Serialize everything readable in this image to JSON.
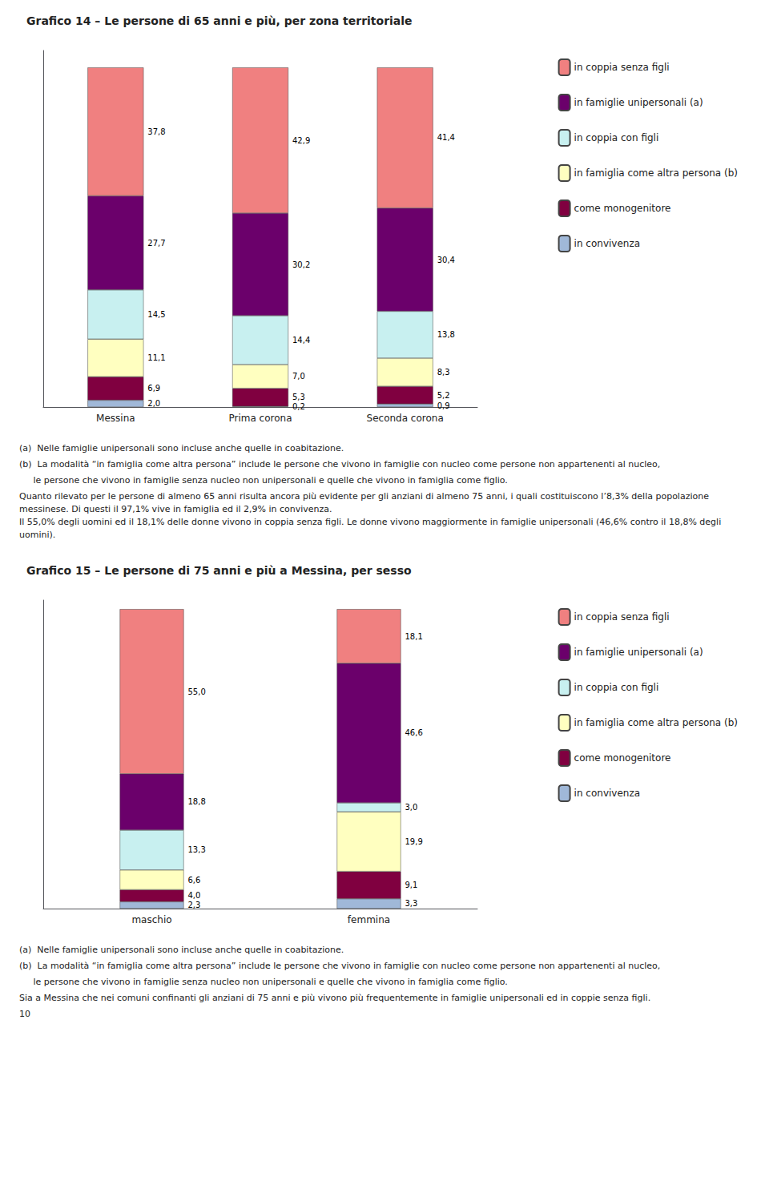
{
  "chart_data": [
    {
      "type": "bar",
      "title": "Grafico 14 – Le persone di 65 anni e più, per zona territoriale",
      "categories": [
        "Messina",
        "Prima corona",
        "Seconda corona"
      ],
      "series": [
        {
          "name": "in convivenza",
          "color": "#A0B8D8",
          "values": [
            2.0,
            0.2,
            0.9
          ],
          "value_labels": [
            "2,0",
            "0,2",
            "0,9"
          ]
        },
        {
          "name": "come monogenitore",
          "color": "#800040",
          "values": [
            6.9,
            5.3,
            5.2
          ],
          "value_labels": [
            "6,9",
            "5,3",
            "5,2"
          ]
        },
        {
          "name": "in famiglia come altra persona (b)",
          "color": "#FFFFC0",
          "values": [
            11.1,
            7.0,
            8.3
          ],
          "value_labels": [
            "11,1",
            "7,0",
            "8,3"
          ]
        },
        {
          "name": "in coppia con figli",
          "color": "#C8F0F0",
          "values": [
            14.5,
            14.4,
            13.8
          ],
          "value_labels": [
            "14,5",
            "14,4",
            "13,8"
          ]
        },
        {
          "name": "in famiglie unipersonali (a)",
          "color": "#6B006B",
          "values": [
            27.7,
            30.2,
            30.4
          ],
          "value_labels": [
            "27,7",
            "30,2",
            "30,4"
          ]
        },
        {
          "name": "in coppia senza figli",
          "color": "#F08080",
          "values": [
            37.8,
            42.9,
            41.4
          ],
          "value_labels": [
            "37,8",
            "42,9",
            "41,4"
          ]
        }
      ],
      "ylim": [
        0,
        105
      ],
      "stacked": true,
      "data_labels": true,
      "tick_labels": "x",
      "grid": false,
      "legend": "right",
      "annotations": [
        "(a)  Nelle famiglie unipersonali sono incluse anche quelle in coabitazione.",
        "(b)  La modalità “in famiglia come altra persona” include le persone che vivono in famiglie con nucleo come persone non appartenenti al nucleo,",
        "     le persone che vivono in famiglie senza nucleo non unipersonali e quelle che vivono in famiglia come figlio.",
        "Quanto rilevato per le persone di almeno 65 anni risulta ancora più evidente per gli anziani di almeno 75 anni, i quali costituiscono l’8,3% della popolazione messinese. Di questi il 97,1% vive in famiglia ed il 2,9% in convivenza.\nIl 55,0% degli uomini ed il 18,1% delle donne vivono in coppia senza figli. Le donne vivono maggiormente in famiglie unipersonali (46,6% contro il 18,8% degli uomini)."
      ]
    },
    {
      "type": "bar",
      "title": "Grafico 15 – Le persone di 75 anni e più a Messina, per sesso",
      "categories": [
        "maschio",
        "femmina"
      ],
      "series": [
        {
          "name": "in convivenza",
          "color": "#A0B8D8",
          "values": [
            2.3,
            3.3
          ],
          "value_labels": [
            "2,3",
            "3,3"
          ]
        },
        {
          "name": "come monogenitore",
          "color": "#800040",
          "values": [
            4.0,
            9.1
          ],
          "value_labels": [
            "4,0",
            "9,1"
          ]
        },
        {
          "name": "in famiglia come altra persona (b)",
          "color": "#FFFFC0",
          "values": [
            6.6,
            19.9
          ],
          "value_labels": [
            "6,6",
            "19,9"
          ]
        },
        {
          "name": "in coppia con figli",
          "color": "#C8F0F0",
          "values": [
            13.3,
            3.0
          ],
          "value_labels": [
            "13,3",
            "3,0"
          ]
        },
        {
          "name": "in famiglie unipersonali (a)",
          "color": "#6B006B",
          "values": [
            18.8,
            46.6
          ],
          "value_labels": [
            "18,8",
            "46,6"
          ]
        },
        {
          "name": "in coppia senza figli",
          "color": "#F08080",
          "values": [
            55.0,
            18.1
          ],
          "value_labels": [
            "55,0",
            "18,1"
          ]
        }
      ],
      "ylim": [
        0,
        103
      ],
      "stacked": true,
      "data_labels": true,
      "tick_labels": "x",
      "grid": false,
      "legend": "right",
      "annotations": [
        "(a)  Nelle famiglie unipersonali sono incluse anche quelle in coabitazione.",
        "(b)  La modalità “in famiglia come altra persona” include le persone che vivono in famiglie con nucleo come persone non appartenenti al nucleo,",
        "     le persone che vivono in famiglie senza nucleo non unipersonali e quelle che vivono in famiglia come figlio.",
        "Sia a Messina che nei comuni confinanti gli anziani di 75 anni e più vivono più frequentemente in famiglie unipersonali ed in coppie senza figli.",
        "10"
      ]
    }
  ]
}
